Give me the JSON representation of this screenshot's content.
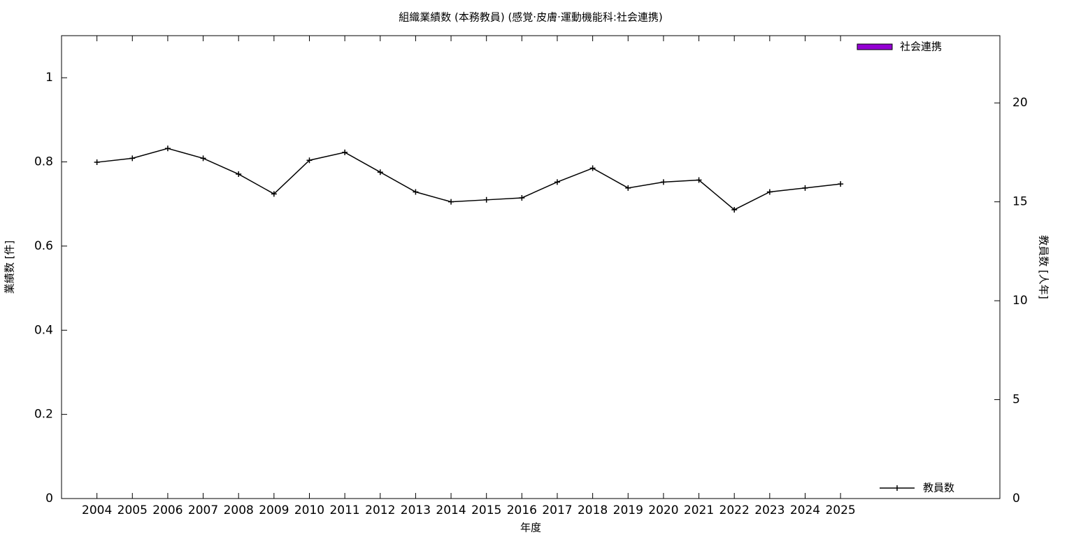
{
  "chart_data": {
    "type": "bar_line",
    "title": "組織業績数 (本務教員) (感覚·皮膚·運動機能科:社会連携)",
    "xlabel": "年度",
    "ylabel": "業績数 [件]",
    "y2label": "教員数 [人年]",
    "categories": [
      "2004",
      "2005",
      "2006",
      "2007",
      "2008",
      "2009",
      "2010",
      "2011",
      "2012",
      "2013",
      "2014",
      "2015",
      "2016",
      "2017",
      "2018",
      "2019",
      "2020",
      "2021",
      "2022",
      "2023",
      "2024",
      "2025"
    ],
    "series": [
      {
        "name": "社会連携",
        "type": "bar",
        "color": "#9400d3",
        "values": [
          0,
          0,
          0,
          0,
          0,
          0,
          0,
          0,
          0,
          0,
          0,
          0,
          0,
          0,
          0,
          0,
          0,
          0,
          0,
          0,
          0,
          0
        ]
      },
      {
        "name": "教員数",
        "type": "line",
        "axis": "y2",
        "color": "#000000",
        "values": [
          17.0,
          17.2,
          17.7,
          17.2,
          16.4,
          15.4,
          17.1,
          17.5,
          16.5,
          15.5,
          15.0,
          15.1,
          15.2,
          16.0,
          16.7,
          15.7,
          16.0,
          16.1,
          14.6,
          15.5,
          15.7,
          15.9
        ]
      }
    ],
    "ylim": [
      0,
      1.1
    ],
    "yticks": [
      0,
      0.2,
      0.4,
      0.6,
      0.8,
      1
    ],
    "y2lim": [
      0,
      23.4
    ],
    "y2ticks": [
      0,
      5,
      10,
      15,
      20
    ],
    "legend": "right",
    "grid": false
  }
}
